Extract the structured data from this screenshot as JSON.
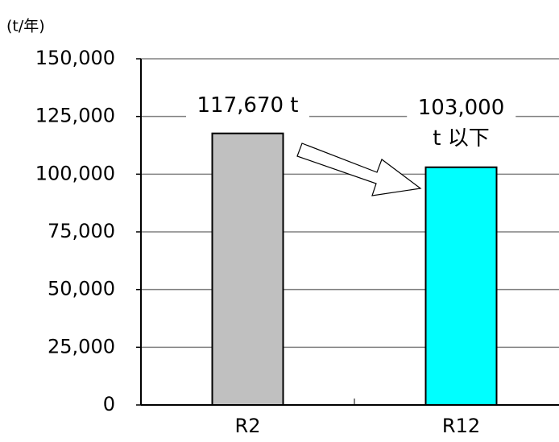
{
  "chart_data": {
    "type": "bar",
    "y_unit": "(t/年)",
    "categories": [
      "R2",
      "R12"
    ],
    "values": [
      117670,
      103000
    ],
    "value_labels": [
      "117,670 t",
      "103,000\nt 以下"
    ],
    "colors": [
      "#c0c0c0",
      "#00ffff"
    ],
    "ylim": [
      0,
      150000
    ],
    "yticks": [
      0,
      {
        "value": 25000,
        "label": "25,000"
      },
      {
        "value": 50000,
        "label": "50,000"
      },
      {
        "value": 75000,
        "label": "75,000"
      },
      {
        "value": 100000,
        "label": "100,000"
      },
      {
        "value": 125000,
        "label": "125,000"
      },
      {
        "value": 150000,
        "label": "150,000"
      }
    ],
    "grid": true
  }
}
